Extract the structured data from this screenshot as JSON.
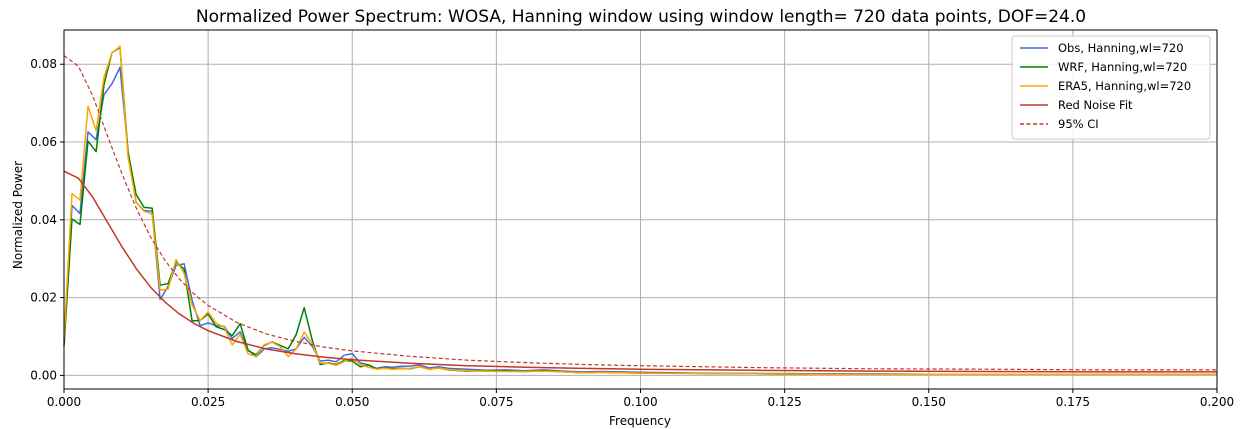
{
  "chart_data": {
    "type": "line",
    "title": "Normalized Power Spectrum: WOSA, Hanning window using window length= 720 data points, DOF=24.0",
    "xlabel": "Frequency",
    "ylabel": "Normalized Power",
    "xlim": [
      0.0,
      0.2
    ],
    "ylim": [
      -0.0035,
      0.0888
    ],
    "x_ticks": [
      "0.000",
      "0.025",
      "0.050",
      "0.075",
      "0.100",
      "0.125",
      "0.150",
      "0.175",
      "0.200"
    ],
    "y_ticks": [
      "0.00",
      "0.02",
      "0.04",
      "0.06",
      "0.08"
    ],
    "grid": true,
    "legend_position": "top-right",
    "series": [
      {
        "name": "Obs, Hanning,wl=720",
        "color": "#4169e1",
        "style": "solid",
        "x": [
          0,
          0.00139,
          0.00278,
          0.00417,
          0.00556,
          0.00694,
          0.00833,
          0.00972,
          0.01111,
          0.0125,
          0.01389,
          0.01528,
          0.01667,
          0.01806,
          0.01944,
          0.02083,
          0.02222,
          0.02361,
          0.025,
          0.02639,
          0.02778,
          0.02917,
          0.03056,
          0.03194,
          0.03333,
          0.03472,
          0.03611,
          0.0375,
          0.03889,
          0.04028,
          0.04167,
          0.04306,
          0.04444,
          0.04583,
          0.04722,
          0.04861,
          0.05,
          0.0514,
          0.0528,
          0.0542,
          0.0556,
          0.057,
          0.0583,
          0.06,
          0.0617,
          0.0633,
          0.065,
          0.0667,
          0.07,
          0.0733,
          0.0767,
          0.08,
          0.0833,
          0.0867,
          0.09,
          0.0933,
          0.0967,
          0.1,
          0.105,
          0.11,
          0.115,
          0.12,
          0.13,
          0.14,
          0.15,
          0.16,
          0.17,
          0.18,
          0.19,
          0.2
        ],
        "y": [
          0.0085,
          0.0437,
          0.0416,
          0.0626,
          0.0606,
          0.0722,
          0.075,
          0.0792,
          0.0577,
          0.0445,
          0.0424,
          0.0422,
          0.0195,
          0.0229,
          0.0283,
          0.0287,
          0.0193,
          0.0128,
          0.0135,
          0.0128,
          0.0126,
          0.0095,
          0.0112,
          0.0065,
          0.0048,
          0.0068,
          0.0071,
          0.0067,
          0.0062,
          0.0068,
          0.0098,
          0.0075,
          0.0037,
          0.0039,
          0.0035,
          0.0052,
          0.0056,
          0.0032,
          0.0027,
          0.0018,
          0.0022,
          0.0021,
          0.0023,
          0.0024,
          0.0027,
          0.0019,
          0.0022,
          0.0018,
          0.0016,
          0.0013,
          0.0014,
          0.0012,
          0.0014,
          0.0011,
          0.0009,
          0.001,
          0.0009,
          0.0008,
          0.0007,
          0.0006,
          0.0005,
          0.0005,
          0.0004,
          0.0004,
          0.0003,
          0.0003,
          0.0003,
          0.0003,
          0.0003,
          0.0003
        ]
      },
      {
        "name": "WRF, Hanning,wl=720",
        "color": "#008000",
        "style": "solid",
        "x": [
          0,
          0.00139,
          0.00278,
          0.00417,
          0.00556,
          0.00694,
          0.00833,
          0.00972,
          0.01111,
          0.0125,
          0.01389,
          0.01528,
          0.01667,
          0.01806,
          0.01944,
          0.02083,
          0.02222,
          0.02361,
          0.025,
          0.02639,
          0.02778,
          0.02917,
          0.03056,
          0.03194,
          0.03333,
          0.03472,
          0.03611,
          0.0375,
          0.03889,
          0.04028,
          0.04167,
          0.04306,
          0.04444,
          0.04583,
          0.04722,
          0.04861,
          0.05,
          0.0514,
          0.0528,
          0.0542,
          0.0556,
          0.057,
          0.0583,
          0.06,
          0.0617,
          0.0633,
          0.065,
          0.0667,
          0.07,
          0.0733,
          0.0767,
          0.08,
          0.0833,
          0.0867,
          0.09,
          0.0933,
          0.0967,
          0.1,
          0.105,
          0.11,
          0.115,
          0.12,
          0.13,
          0.14,
          0.15,
          0.16,
          0.17,
          0.18,
          0.19,
          0.2
        ],
        "y": [
          0.0075,
          0.0402,
          0.0388,
          0.0602,
          0.0575,
          0.0748,
          0.083,
          0.0843,
          0.0575,
          0.0465,
          0.0432,
          0.043,
          0.0232,
          0.0236,
          0.0292,
          0.0273,
          0.014,
          0.0141,
          0.0158,
          0.0125,
          0.0118,
          0.0102,
          0.0133,
          0.0064,
          0.0053,
          0.0077,
          0.0086,
          0.0077,
          0.0068,
          0.0105,
          0.0174,
          0.0091,
          0.0028,
          0.0032,
          0.0028,
          0.0038,
          0.0037,
          0.0022,
          0.0027,
          0.0017,
          0.0019,
          0.0017,
          0.0018,
          0.0017,
          0.0022,
          0.0016,
          0.0019,
          0.0014,
          0.0011,
          0.0012,
          0.0011,
          0.001,
          0.0012,
          0.0009,
          0.0007,
          0.0008,
          0.0007,
          0.0006,
          0.0006,
          0.0005,
          0.0004,
          0.0004,
          0.0003,
          0.0003,
          0.0003,
          0.0003,
          0.0003,
          0.0003,
          0.0003,
          0.0003
        ]
      },
      {
        "name": "ERA5, Hanning,wl=720",
        "color": "#ffa500",
        "style": "solid",
        "x": [
          0,
          0.00139,
          0.00278,
          0.00417,
          0.00556,
          0.00694,
          0.00833,
          0.00972,
          0.01111,
          0.0125,
          0.01389,
          0.01528,
          0.01667,
          0.01806,
          0.01944,
          0.02083,
          0.02222,
          0.02361,
          0.025,
          0.02639,
          0.02778,
          0.02917,
          0.03056,
          0.03194,
          0.03333,
          0.03472,
          0.03611,
          0.0375,
          0.03889,
          0.04028,
          0.04167,
          0.04306,
          0.04444,
          0.04583,
          0.04722,
          0.04861,
          0.05,
          0.0514,
          0.0528,
          0.0542,
          0.0556,
          0.057,
          0.0583,
          0.06,
          0.0617,
          0.0633,
          0.065,
          0.0667,
          0.07,
          0.0733,
          0.0767,
          0.08,
          0.0833,
          0.0867,
          0.09,
          0.0933,
          0.0967,
          0.1,
          0.105,
          0.11,
          0.115,
          0.12,
          0.13,
          0.14,
          0.15,
          0.16,
          0.17,
          0.18,
          0.19,
          0.2
        ],
        "y": [
          0.0095,
          0.0467,
          0.0451,
          0.0692,
          0.0629,
          0.0767,
          0.0829,
          0.0846,
          0.0562,
          0.0445,
          0.0422,
          0.0415,
          0.0219,
          0.0222,
          0.0298,
          0.0262,
          0.0181,
          0.0141,
          0.0163,
          0.0134,
          0.0124,
          0.0078,
          0.0106,
          0.0055,
          0.0049,
          0.0079,
          0.0085,
          0.0074,
          0.0048,
          0.0068,
          0.0111,
          0.0082,
          0.0032,
          0.0031,
          0.0026,
          0.0036,
          0.0045,
          0.0028,
          0.0021,
          0.0016,
          0.0018,
          0.0016,
          0.0017,
          0.0018,
          0.0022,
          0.0016,
          0.0019,
          0.0015,
          0.0012,
          0.0011,
          0.001,
          0.001,
          0.0011,
          0.0009,
          0.0007,
          0.0008,
          0.0007,
          0.0006,
          0.0005,
          0.0005,
          0.0004,
          0.0004,
          0.0003,
          0.0003,
          0.0003,
          0.0003,
          0.0003,
          0.0003,
          0.0003,
          0.0003
        ]
      },
      {
        "name": "Red Noise Fit",
        "color": "#c0392b",
        "style": "solid",
        "x": [
          0,
          0.0025,
          0.005,
          0.0075,
          0.01,
          0.0125,
          0.015,
          0.0175,
          0.02,
          0.0225,
          0.025,
          0.03,
          0.035,
          0.04,
          0.045,
          0.05,
          0.06,
          0.07,
          0.08,
          0.09,
          0.1,
          0.12,
          0.14,
          0.16,
          0.18,
          0.2
        ],
        "y": [
          0.0525,
          0.0507,
          0.0458,
          0.0395,
          0.0332,
          0.0275,
          0.0227,
          0.0189,
          0.0158,
          0.0134,
          0.0115,
          0.0087,
          0.0068,
          0.0056,
          0.0047,
          0.004,
          0.0031,
          0.0025,
          0.0021,
          0.0018,
          0.0016,
          0.0013,
          0.0011,
          0.001,
          0.0009,
          0.0009
        ]
      },
      {
        "name": "95% CI",
        "color": "#c0392b",
        "style": "dashed",
        "x": [
          0,
          0.0025,
          0.005,
          0.0075,
          0.01,
          0.0125,
          0.015,
          0.0175,
          0.02,
          0.0225,
          0.025,
          0.03,
          0.035,
          0.04,
          0.045,
          0.05,
          0.06,
          0.07,
          0.08,
          0.09,
          0.1,
          0.12,
          0.14,
          0.16,
          0.18,
          0.2
        ],
        "y": [
          0.0822,
          0.0795,
          0.0718,
          0.0618,
          0.052,
          0.0431,
          0.0356,
          0.0296,
          0.0248,
          0.021,
          0.018,
          0.0136,
          0.0107,
          0.0088,
          0.0073,
          0.0063,
          0.0049,
          0.0039,
          0.0033,
          0.0028,
          0.0025,
          0.002,
          0.0017,
          0.0016,
          0.0014,
          0.0014
        ]
      }
    ]
  }
}
